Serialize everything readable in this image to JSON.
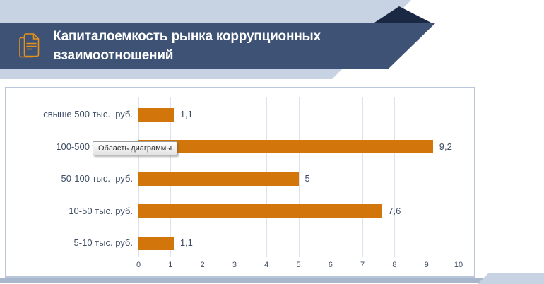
{
  "header": {
    "title_line1": "Капиталоемкость рынка коррупционных",
    "title_line2": "взаимоотношений",
    "icon": "document-icon",
    "colors": {
      "banner": "#3d5275",
      "fold": "#1b2844",
      "backdrop": "#c7d2e2",
      "title_text": "#ffffff",
      "icon_stroke": "#e69117"
    }
  },
  "tooltip": {
    "text": "Область диаграммы"
  },
  "chart_data": {
    "type": "bar",
    "orientation": "horizontal",
    "title": "",
    "xlabel": "",
    "ylabel": "",
    "categories": [
      "свыше 500 тыс.  руб.",
      "100-500 тыс.  руб.",
      "50-100 тыс.  руб.",
      "10-50 тыс. руб.",
      "5-10 тыс. руб."
    ],
    "values": [
      1.1,
      9.2,
      5,
      7.6,
      1.1
    ],
    "value_labels": [
      "1,1",
      "9,2",
      "5",
      "7,6",
      "1,1"
    ],
    "xlim": [
      0,
      10
    ],
    "xticks": [
      0,
      1,
      2,
      3,
      4,
      5,
      6,
      7,
      8,
      9,
      10
    ],
    "grid": true,
    "legend": false,
    "bar_color": "#d2760b",
    "label_color": "#3e4d66",
    "gridline_color": "#dde3ee"
  }
}
